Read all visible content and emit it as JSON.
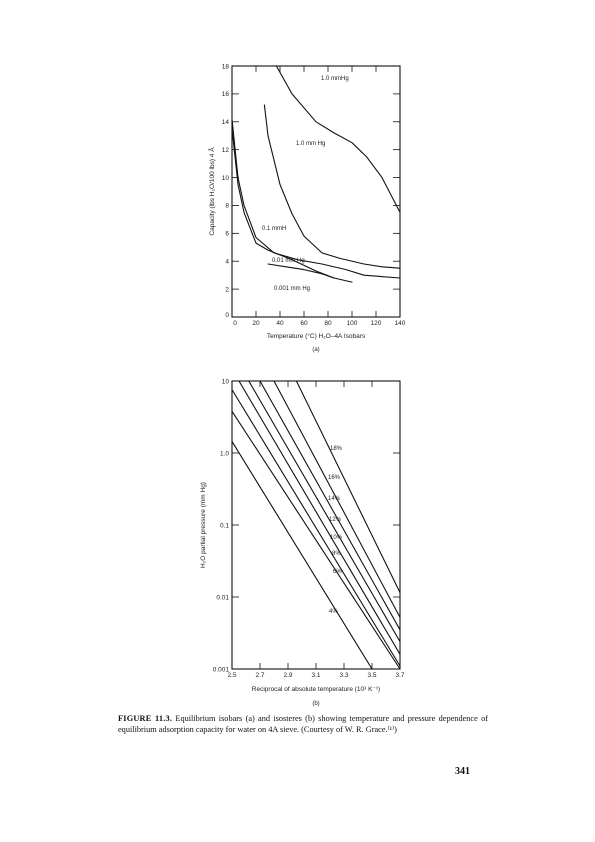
{
  "chart_data": [
    {
      "type": "line",
      "panel": "(a)",
      "xlabel": "Temperature (°C)  H₂O–4A Isobars",
      "ylabel": "Capacity (lbs H₂O/100 lbs) 4 Å",
      "xlim": [
        0,
        140
      ],
      "ylim": [
        0,
        18
      ],
      "x_ticks": [
        "0",
        "20",
        "40",
        "60",
        "80",
        "100",
        "120",
        "140"
      ],
      "y_ticks": [
        "0",
        "2",
        "4",
        "6",
        "8",
        "10",
        "12",
        "14",
        "16",
        "18"
      ],
      "grid": false,
      "series": [
        {
          "name": "1.0 mmHg",
          "x": [
            37,
            50,
            70,
            85,
            100,
            112,
            125,
            140
          ],
          "y": [
            18,
            16,
            14,
            13.2,
            12.5,
            11.5,
            10,
            7.5
          ]
        },
        {
          "name": "1.0 mm Hg",
          "x": [
            27,
            30,
            40,
            50,
            60,
            75,
            90,
            110,
            125,
            140
          ],
          "y": [
            15.2,
            13,
            9.5,
            7.4,
            5.8,
            4.6,
            4.2,
            3.8,
            3.6,
            3.5
          ]
        },
        {
          "name": "0.1 mmH",
          "x": [
            0,
            5,
            10,
            20,
            35,
            55,
            75,
            95,
            110,
            140
          ],
          "y": [
            14.2,
            10,
            8,
            5.7,
            4.6,
            4.1,
            3.8,
            3.4,
            3.0,
            2.8
          ]
        },
        {
          "name": "0.01 mm Hg",
          "x": [
            0,
            5,
            10,
            20,
            30,
            50,
            70,
            85,
            100
          ],
          "y": [
            13.5,
            9.5,
            7.5,
            5.3,
            4.8,
            4.1,
            3.3,
            2.8,
            2.5
          ]
        },
        {
          "name": "0.001 mm Hg",
          "x": [
            30,
            45,
            60,
            75,
            85
          ],
          "y": [
            3.8,
            3.6,
            3.4,
            3.1,
            2.8
          ]
        }
      ]
    },
    {
      "type": "line",
      "panel": "(b)",
      "xlabel": "Reciprocal of absolute temperature (10³ K⁻¹)",
      "ylabel": "H₂O partial pressure (mm Hg)",
      "xlim": [
        2.5,
        3.7
      ],
      "ylim": [
        0.001,
        10
      ],
      "yscale": "log",
      "x_ticks": [
        "2.5",
        "2.7",
        "2.9",
        "3.1",
        "3.3",
        "3.5",
        "3.7"
      ],
      "y_ticks": [
        "0.001",
        "0.01",
        "0.1",
        "1.0",
        "10"
      ],
      "grid": false,
      "series": [
        {
          "name": "18%",
          "x": [
            2.96,
            3.7
          ],
          "y": [
            10,
            0.0115
          ]
        },
        {
          "name": "16%",
          "x": [
            2.8,
            3.7
          ],
          "y": [
            10,
            0.0052
          ]
        },
        {
          "name": "14%",
          "x": [
            2.7,
            3.7
          ],
          "y": [
            10,
            0.0035
          ]
        },
        {
          "name": "12%",
          "x": [
            2.62,
            3.7
          ],
          "y": [
            10,
            0.0024
          ]
        },
        {
          "name": "10%",
          "x": [
            2.55,
            3.7
          ],
          "y": [
            10,
            0.0016
          ]
        },
        {
          "name": "8%",
          "x": [
            2.5,
            3.7
          ],
          "y": [
            7.6,
            0.0011
          ]
        },
        {
          "name": "6%",
          "x": [
            2.5,
            3.7
          ],
          "y": [
            3.8,
            0.001
          ]
        },
        {
          "name": "4%",
          "x": [
            2.5,
            3.5
          ],
          "y": [
            1.45,
            0.001
          ]
        }
      ]
    }
  ],
  "caption": {
    "label": "FIGURE 11.3.",
    "text": "Equilibrium isobars (a) and isosteres (b) showing temperature and pressure dependence of equilibrium adsorption capacity for water on 4A sieve. (Courtesy of W. R. Grace.⁽¹⁾)"
  },
  "page_number": "341"
}
